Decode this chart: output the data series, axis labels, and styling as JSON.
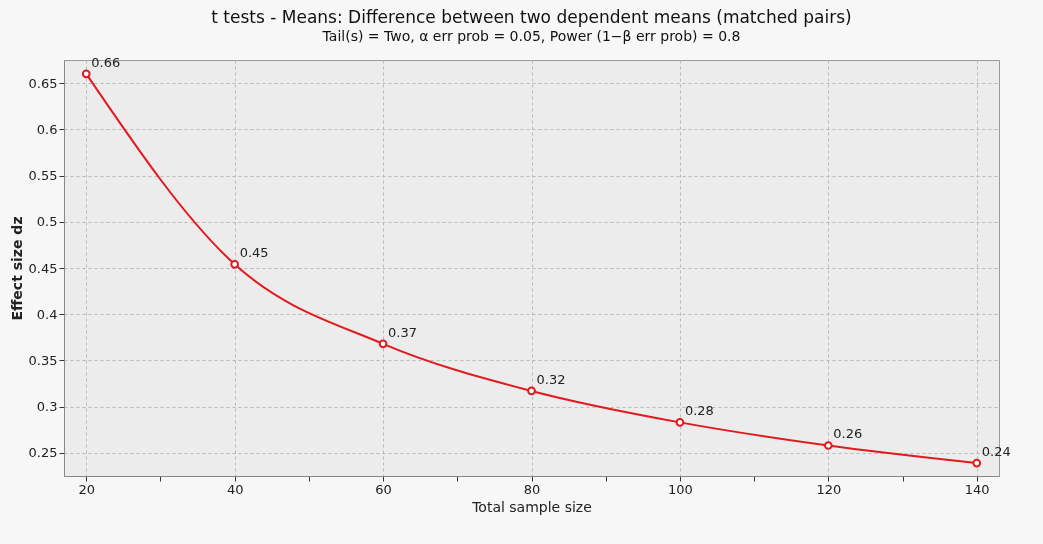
{
  "chart_data": {
    "type": "line",
    "title": "t tests - Means: Difference between two dependent means (matched pairs)",
    "subtitle": "Tail(s) = Two, α err prob = 0.05, Power (1−β err prob) = 0.8",
    "xlabel": "Total sample size",
    "ylabel": "Effect size dz",
    "x": [
      20,
      40,
      60,
      80,
      100,
      120,
      140
    ],
    "series": [
      {
        "color": "#e3191e",
        "values": [
          0.66,
          0.454,
          0.368,
          0.317,
          0.283,
          0.258,
          0.239
        ],
        "value_labels": [
          "0.66",
          "0.45",
          "0.37",
          "0.32",
          "0.28",
          "0.26",
          "0.24"
        ]
      }
    ],
    "xlim": [
      17,
      143
    ],
    "xticks": [
      20,
      {
        "value": 30,
        "label": null
      },
      40,
      {
        "value": 50,
        "label": null
      },
      60,
      {
        "value": 70,
        "label": null
      },
      80,
      {
        "value": 90,
        "label": null
      },
      100,
      {
        "value": 110,
        "label": null
      },
      120,
      {
        "value": 130,
        "label": null
      },
      140
    ],
    "ylim": [
      0.225,
      0.675
    ],
    "yticks": [
      0.25,
      0.3,
      0.35,
      0.4,
      0.45,
      0.5,
      0.55,
      0.6,
      0.65
    ],
    "grid": true,
    "marker": "circle",
    "line_style": "solid"
  }
}
